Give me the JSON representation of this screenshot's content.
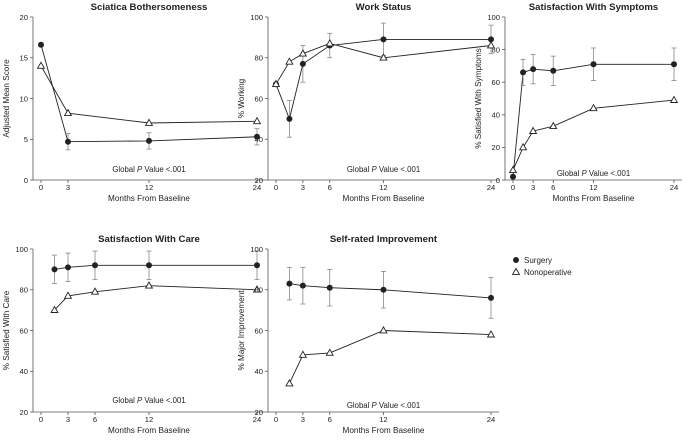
{
  "chart_data": [
    {
      "type": "line",
      "title": "Sciatica Bothersomeness",
      "ylabel": "Adjusted Mean Score",
      "xlabel": "Months From Baseline",
      "annotation_pre": "Global ",
      "annotation_p": "P",
      "annotation_post": " Value <.001",
      "ylim": [
        0,
        20
      ],
      "yticks": [
        0,
        5,
        10,
        15,
        20
      ],
      "xlim": [
        0,
        24
      ],
      "xticks": [
        0,
        3,
        12,
        24
      ],
      "series": [
        {
          "name": "Surgery",
          "x": [
            0,
            3,
            12,
            24
          ],
          "y": [
            16.6,
            4.7,
            4.8,
            5.3
          ],
          "err": [
            0,
            1.0,
            1.0,
            1.0
          ]
        },
        {
          "name": "Nonoperative",
          "x": [
            0,
            3,
            12,
            24
          ],
          "y": [
            14.0,
            8.2,
            7.0,
            7.2
          ],
          "err": [
            0,
            0,
            0,
            0
          ]
        }
      ]
    },
    {
      "type": "line",
      "title": "Work Status",
      "ylabel": "% Working",
      "xlabel": "Months From Baseline",
      "annotation_pre": "Global ",
      "annotation_p": "P",
      "annotation_post": " Value <.001",
      "ylim": [
        20,
        100
      ],
      "yticks": [
        20,
        40,
        60,
        80,
        100
      ],
      "xlim": [
        0,
        24
      ],
      "xticks": [
        0,
        3,
        6,
        12,
        24
      ],
      "series": [
        {
          "name": "Surgery",
          "x": [
            0,
            1.5,
            3,
            6,
            12,
            24
          ],
          "y": [
            67,
            50,
            77,
            86,
            89,
            89
          ],
          "err": [
            0,
            9,
            9,
            6,
            8,
            7
          ]
        },
        {
          "name": "Nonoperative",
          "x": [
            0,
            1.5,
            3,
            6,
            12,
            24
          ],
          "y": [
            67,
            78,
            82,
            87,
            80,
            86
          ],
          "err": [
            0,
            0,
            0,
            0,
            0,
            0
          ]
        }
      ]
    },
    {
      "type": "line",
      "title": "Satisfaction With Symptoms",
      "ylabel": "% Satisfied With Symptoms",
      "xlabel": "Months From Baseline",
      "annotation_pre": "Global ",
      "annotation_p": "P",
      "annotation_post": " Value <.001",
      "ylim": [
        0,
        100
      ],
      "yticks": [
        0,
        20,
        40,
        60,
        80,
        100
      ],
      "xlim": [
        0,
        24
      ],
      "xticks": [
        0,
        3,
        6,
        12,
        24
      ],
      "series": [
        {
          "name": "Surgery",
          "x": [
            0,
            1.5,
            3,
            6,
            12,
            24
          ],
          "y": [
            2,
            66,
            68,
            67,
            71,
            71
          ],
          "err": [
            0,
            8,
            9,
            9,
            10,
            10
          ]
        },
        {
          "name": "Nonoperative",
          "x": [
            0,
            1.5,
            3,
            6,
            12,
            24
          ],
          "y": [
            6,
            20,
            30,
            33,
            44,
            49
          ],
          "err": [
            0,
            0,
            0,
            0,
            0,
            0
          ]
        }
      ]
    },
    {
      "type": "line",
      "title": "Satisfaction With Care",
      "ylabel": "% Satisfied With Care",
      "xlabel": "Months From Baseline",
      "annotation_pre": "Global ",
      "annotation_p": "P",
      "annotation_post": " Value <.001",
      "ylim": [
        20,
        100
      ],
      "yticks": [
        20,
        40,
        60,
        80,
        100
      ],
      "xlim": [
        0,
        24
      ],
      "xticks": [
        0,
        3,
        6,
        12,
        24
      ],
      "series": [
        {
          "name": "Surgery",
          "x": [
            1.5,
            3,
            6,
            12,
            24
          ],
          "y": [
            90,
            91,
            92,
            92,
            92
          ],
          "err": [
            7,
            7,
            7,
            7,
            7
          ]
        },
        {
          "name": "Nonoperative",
          "x": [
            1.5,
            3,
            6,
            12,
            24
          ],
          "y": [
            70,
            77,
            79,
            82,
            80
          ],
          "err": [
            0,
            0,
            0,
            0,
            0
          ]
        }
      ]
    },
    {
      "type": "line",
      "title": "Self-rated Improvement",
      "ylabel": "% Major Improvement",
      "xlabel": "Months From Baseline",
      "annotation_pre": "Global ",
      "annotation_p": "P",
      "annotation_post": " Value <.001",
      "ylim": [
        20,
        100
      ],
      "yticks": [
        20,
        40,
        60,
        80,
        100
      ],
      "xlim": [
        0,
        24
      ],
      "xticks": [
        0,
        3,
        6,
        12,
        24
      ],
      "series": [
        {
          "name": "Surgery",
          "x": [
            1.5,
            3,
            6,
            12,
            24
          ],
          "y": [
            83,
            82,
            81,
            80,
            76
          ],
          "err": [
            8,
            9,
            9,
            9,
            10
          ]
        },
        {
          "name": "Nonoperative",
          "x": [
            1.5,
            3,
            6,
            12,
            24
          ],
          "y": [
            34,
            48,
            49,
            60,
            58
          ],
          "err": [
            0,
            0,
            0,
            0,
            0
          ]
        }
      ]
    }
  ],
  "legend": {
    "items": [
      {
        "label": "Surgery",
        "marker": "circle"
      },
      {
        "label": "Nonoperative",
        "marker": "triangle"
      }
    ]
  },
  "colors": {
    "line": "#222222",
    "axis": "#555555",
    "errorbar": "#888888",
    "background": "#ffffff"
  }
}
